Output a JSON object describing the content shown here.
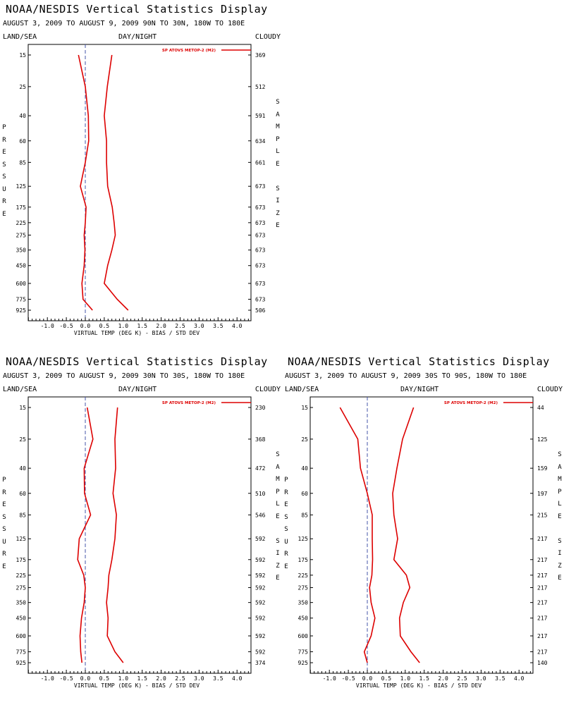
{
  "panels": [
    {
      "title": "NOAA/NESDIS Vertical Statistics Display",
      "subtitle": "AUGUST 3, 2009 TO AUGUST 9, 2009   90N TO 30N, 180W TO 180E",
      "left_label": "LAND/SEA",
      "center_label": "DAY/NIGHT",
      "right_label": "CLOUDY"
    },
    {
      "title": "NOAA/NESDIS Vertical Statistics Display",
      "subtitle": "AUGUST 3, 2009 TO AUGUST 9, 2009   30N TO 30S, 180W TO 180E",
      "left_label": "LAND/SEA",
      "center_label": "DAY/NIGHT",
      "right_label": "CLOUDY"
    },
    {
      "title": "NOAA/NESDIS Vertical Statistics Display",
      "subtitle": "AUGUST 3, 2009 TO AUGUST 9, 2009   30S TO 90S, 180W TO 180E",
      "left_label": "LAND/SEA",
      "center_label": "DAY/NIGHT",
      "right_label": "CLOUDY"
    }
  ],
  "chart_data": [
    {
      "type": "line",
      "legend": "SP ATOVS METOP-2 (M2)",
      "legend_position": "top-right",
      "xlabel": "VIRTUAL TEMP (DEG K) - BIAS / STD DEV",
      "ylabel": "PRESSURE",
      "y2label": "SAMPLE SIZE",
      "xlim": [
        -1.5,
        4.4
      ],
      "xticks": [
        "-1.0",
        "-0.5",
        "0.0",
        "0.5",
        "1.0",
        "1.5",
        "2.0",
        "2.5",
        "3.0",
        "3.5",
        "4.0"
      ],
      "pressure_levels": [
        "15",
        "25",
        "40",
        "60",
        "85",
        "125",
        "175",
        "225",
        "275",
        "350",
        "450",
        "600",
        "775",
        "925"
      ],
      "sample_size": [
        "369",
        "512",
        "591",
        "634",
        "661",
        "673",
        "673",
        "673",
        "673",
        "673",
        "673",
        "673",
        "673",
        "506"
      ],
      "color": "#dd0000",
      "series": [
        {
          "values": [
            -0.18,
            0.0,
            0.08,
            0.09,
            0.0,
            -0.13,
            0.02,
            0.0,
            -0.03,
            -0.01,
            -0.03,
            -0.09,
            -0.06,
            0.19
          ]
        },
        {
          "values": [
            0.7,
            0.58,
            0.5,
            0.56,
            0.56,
            0.59,
            0.71,
            0.76,
            0.79,
            0.7,
            0.59,
            0.5,
            0.84,
            1.13
          ]
        }
      ]
    },
    {
      "type": "line",
      "legend": "SP ATOVS METOP-2 (M2)",
      "legend_position": "top-right",
      "xlabel": "VIRTUAL TEMP (DEG K) - BIAS / STD DEV",
      "ylabel": "PRESSURE",
      "y2label": "SAMPLE SIZE",
      "xlim": [
        -1.5,
        4.4
      ],
      "xticks": [
        "-1.0",
        "-0.5",
        "0.0",
        "0.5",
        "1.0",
        "1.5",
        "2.0",
        "2.5",
        "3.0",
        "3.5",
        "4.0"
      ],
      "pressure_levels": [
        "15",
        "25",
        "40",
        "60",
        "85",
        "125",
        "175",
        "225",
        "275",
        "350",
        "450",
        "600",
        "775",
        "925"
      ],
      "sample_size": [
        "230",
        "368",
        "472",
        "510",
        "546",
        "592",
        "592",
        "592",
        "592",
        "592",
        "592",
        "592",
        "592",
        "374"
      ],
      "color": "#dd0000",
      "series": [
        {
          "values": [
            0.05,
            0.2,
            -0.03,
            -0.02,
            0.14,
            -0.16,
            -0.2,
            -0.04,
            0.0,
            -0.03,
            -0.1,
            -0.14,
            -0.12,
            -0.09
          ]
        },
        {
          "values": [
            0.85,
            0.78,
            0.8,
            0.73,
            0.82,
            0.78,
            0.7,
            0.62,
            0.6,
            0.56,
            0.6,
            0.58,
            0.78,
            1.0
          ]
        }
      ]
    },
    {
      "type": "line",
      "legend": "SP ATOVS METOP-2 (M2)",
      "legend_position": "top-right",
      "xlabel": "VIRTUAL TEMP (DEG K) - BIAS / STD DEV",
      "ylabel": "PRESSURE",
      "y2label": "SAMPLE SIZE",
      "xlim": [
        -1.5,
        4.4
      ],
      "xticks": [
        "-1.0",
        "-0.5",
        "0.0",
        "0.5",
        "1.0",
        "1.5",
        "2.0",
        "2.5",
        "3.0",
        "3.5",
        "4.0"
      ],
      "pressure_levels": [
        "15",
        "25",
        "40",
        "60",
        "85",
        "125",
        "175",
        "225",
        "275",
        "350",
        "450",
        "600",
        "775",
        "925"
      ],
      "sample_size": [
        "44",
        "125",
        "159",
        "197",
        "215",
        "217",
        "217",
        "217",
        "217",
        "217",
        "217",
        "217",
        "217",
        "140"
      ],
      "color": "#dd0000",
      "series": [
        {
          "values": [
            -0.72,
            -0.25,
            -0.18,
            0.0,
            0.13,
            0.13,
            0.14,
            0.12,
            0.06,
            0.1,
            0.2,
            0.1,
            -0.08,
            0.0
          ]
        },
        {
          "values": [
            1.22,
            0.93,
            0.78,
            0.67,
            0.7,
            0.8,
            0.7,
            1.03,
            1.12,
            0.95,
            0.85,
            0.87,
            1.15,
            1.38
          ]
        }
      ]
    }
  ]
}
